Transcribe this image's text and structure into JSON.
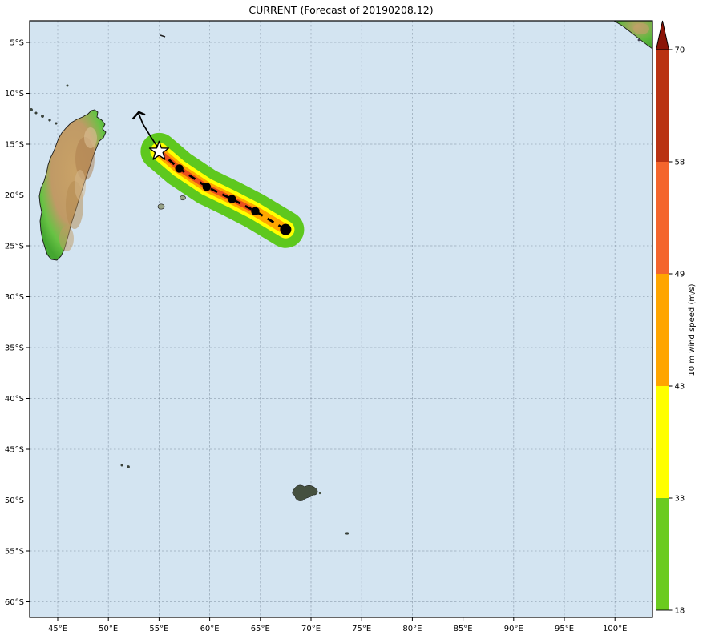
{
  "title": "CURRENT (Forecast of 20190208.12)",
  "chart_data": {
    "type": "map",
    "title": "CURRENT (Forecast of 20190208.12)",
    "grid": true,
    "ocean_color": "#d3e4f1",
    "x_axis": {
      "unit": "degrees east",
      "tick_labels": [
        "45°E",
        "50°E",
        "55°E",
        "60°E",
        "65°E",
        "70°E",
        "75°E",
        "80°E",
        "85°E",
        "90°E",
        "95°E",
        "100°E"
      ],
      "tick_values": [
        45,
        50,
        55,
        60,
        65,
        70,
        75,
        80,
        85,
        90,
        95,
        100
      ],
      "range": [
        42.2,
        103.7
      ]
    },
    "y_axis": {
      "unit": "degrees south",
      "tick_labels": [
        "5°S",
        "10°S",
        "15°S",
        "20°S",
        "25°S",
        "30°S",
        "35°S",
        "40°S",
        "45°S",
        "50°S",
        "55°S",
        "60°S"
      ],
      "tick_values": [
        5,
        10,
        15,
        20,
        25,
        30,
        35,
        40,
        45,
        50,
        55,
        60
      ],
      "range": [
        2.9,
        61.5
      ]
    },
    "colorbar": {
      "label": "10 m wind speed (m/s)",
      "orientation": "vertical",
      "position": "right",
      "tick_labels": [
        "18",
        "33",
        "43",
        "49",
        "58",
        "70"
      ],
      "levels": [
        18,
        33,
        43,
        49,
        58,
        70
      ],
      "segment_colors": [
        "#6bcb1f",
        "#ffff00",
        "#ffa500",
        "#f4652c",
        "#b93212"
      ],
      "extend_max_color": "#8b1507"
    },
    "storm_track": {
      "marker_current": "white-star",
      "track_style": "black-dashed-with-dots",
      "current_position": {
        "lon": 55.0,
        "lat": 15.7
      },
      "past_track": [
        [
          53.0,
          12.0
        ],
        [
          53.4,
          13.0
        ],
        [
          54.2,
          14.3
        ],
        [
          54.8,
          15.2
        ],
        [
          55.0,
          15.7
        ]
      ],
      "forecast_points": [
        [
          57.0,
          17.4
        ],
        [
          59.7,
          19.2
        ],
        [
          62.2,
          20.4
        ],
        [
          64.5,
          21.6
        ],
        [
          67.5,
          23.4
        ]
      ],
      "cone_colors": {
        "outer": "#5ec81e",
        "mid": "#ffff00",
        "inner": "#ffa500",
        "core": "#ea4f1d"
      }
    },
    "land_features": [
      "Madagascar",
      "Comoros",
      "Aldabra",
      "Seychelles",
      "Réunion",
      "Mauritius",
      "Rodrigues",
      "Crozet Islands",
      "Kerguelen",
      "Heard Island",
      "Sumatra corner"
    ]
  }
}
